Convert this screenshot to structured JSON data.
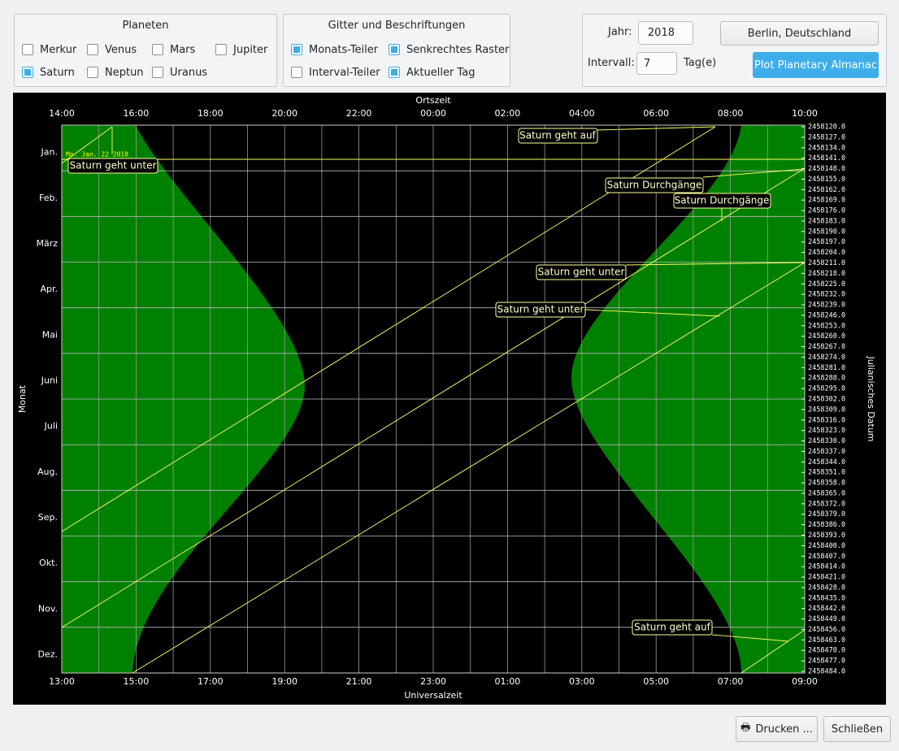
{
  "planets": {
    "title": "Planeten",
    "items": [
      {
        "label": "Merkur",
        "checked": false
      },
      {
        "label": "Venus",
        "checked": false
      },
      {
        "label": "Mars",
        "checked": false
      },
      {
        "label": "Jupiter",
        "checked": false
      },
      {
        "label": "Saturn",
        "checked": true
      },
      {
        "label": "Neptun",
        "checked": false
      },
      {
        "label": "Uranus",
        "checked": false
      }
    ]
  },
  "grid_labels": {
    "title": "Gitter und Beschriftungen",
    "items": [
      {
        "label": "Monats-Teiler",
        "checked": true
      },
      {
        "label": "Senkrechtes Raster",
        "checked": true
      },
      {
        "label": "Interval-Teiler",
        "checked": false
      },
      {
        "label": "Aktueller Tag",
        "checked": true
      }
    ]
  },
  "controls": {
    "year_label": "Jahr:",
    "year": "2018",
    "interval_label": "Intervall:",
    "interval": "7",
    "interval_unit": "Tag(e)",
    "location_button": "Berlin, Deutschland",
    "plot_button": "Plot Planetary Almanac"
  },
  "plot": {
    "top_axis_title": "Ortszeit",
    "bottom_axis_title": "Universalzeit",
    "left_axis_title": "Monat",
    "right_axis_title": "Julianisches Datum",
    "top_ticks": [
      "14:00",
      "16:00",
      "18:00",
      "20:00",
      "22:00",
      "00:00",
      "02:00",
      "04:00",
      "06:00",
      "08:00",
      "10:00"
    ],
    "bottom_ticks": [
      "13:00",
      "15:00",
      "17:00",
      "19:00",
      "21:00",
      "23:00",
      "01:00",
      "03:00",
      "05:00",
      "07:00",
      "09:00"
    ],
    "months": [
      "Jan.",
      "Feb.",
      "März",
      "Apr.",
      "Mai",
      "Juni",
      "Juli",
      "Aug.",
      "Sep.",
      "Okt.",
      "Nov.",
      "Dez."
    ],
    "julian_dates": [
      "2458120.0",
      "2458127.0",
      "2458134.0",
      "2458141.0",
      "2458148.0",
      "2458155.0",
      "2458162.0",
      "2458169.0",
      "2458176.0",
      "2458183.0",
      "2458190.0",
      "2458197.0",
      "2458204.0",
      "2458211.0",
      "2458218.0",
      "2458225.0",
      "2458232.0",
      "2458239.0",
      "2458246.0",
      "2458253.0",
      "2458260.0",
      "2458267.0",
      "2458274.0",
      "2458281.0",
      "2458288.0",
      "2458295.0",
      "2458302.0",
      "2458309.0",
      "2458316.0",
      "2458323.0",
      "2458330.0",
      "2458337.0",
      "2458344.0",
      "2458351.0",
      "2458358.0",
      "2458365.0",
      "2458372.0",
      "2458379.0",
      "2458386.0",
      "2458393.0",
      "2458400.0",
      "2458407.0",
      "2458414.0",
      "2458421.0",
      "2458428.0",
      "2458435.0",
      "2458442.0",
      "2458449.0",
      "2458456.0",
      "2458463.0",
      "2458470.0",
      "2458477.0",
      "2458484.0"
    ],
    "date_label": "Mo. Jan. 22 2018",
    "annotations": [
      "Saturn geht auf",
      "Saturn geht unter",
      "Saturn Durchgänge",
      "Saturn Durchgänge",
      "Saturn geht unter",
      "Saturn geht unter",
      "Saturn geht auf"
    ]
  },
  "footer": {
    "print": "Drucken ...",
    "close": "Schließen"
  }
}
